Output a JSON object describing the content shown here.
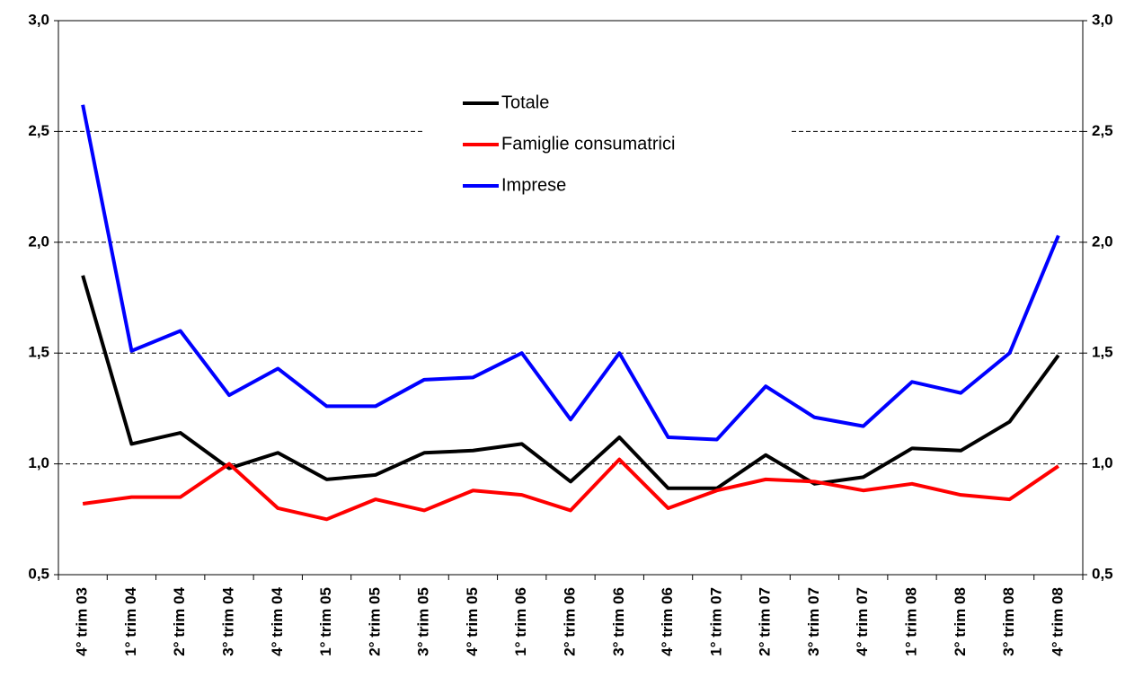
{
  "chart_data": {
    "type": "line",
    "categories": [
      "4° trim 03",
      "1° trim 04",
      "2° trim 04",
      "3° trim 04",
      "4° trim 04",
      "1° trim 05",
      "2° trim 05",
      "3° trim 05",
      "4° trim 05",
      "1° trim 06",
      "2° trim 06",
      "3° trim 06",
      "4° trim 06",
      "1° trim 07",
      "2° trim 07",
      "3° trim 07",
      "4° trim 07",
      "1° trim 08",
      "2° trim 08",
      "3° trim 08",
      "4° trim 08"
    ],
    "series": [
      {
        "name": "Totale",
        "color": "#000000",
        "values": [
          1.85,
          1.09,
          1.14,
          0.98,
          1.05,
          0.93,
          0.95,
          1.05,
          1.06,
          1.09,
          0.92,
          1.12,
          0.89,
          0.89,
          1.04,
          0.91,
          0.94,
          1.07,
          1.06,
          1.19,
          1.49
        ]
      },
      {
        "name": "Famiglie consumatrici",
        "color": "#ff0000",
        "values": [
          0.82,
          0.85,
          0.85,
          1.0,
          0.8,
          0.75,
          0.84,
          0.79,
          0.88,
          0.86,
          0.79,
          1.02,
          0.8,
          0.88,
          0.93,
          0.92,
          0.88,
          0.91,
          0.86,
          0.84,
          0.99
        ]
      },
      {
        "name": "Imprese",
        "color": "#0000ff",
        "values": [
          2.62,
          1.51,
          1.6,
          1.31,
          1.43,
          1.26,
          1.26,
          1.38,
          1.39,
          1.5,
          1.2,
          1.5,
          1.12,
          1.11,
          1.35,
          1.21,
          1.17,
          1.37,
          1.32,
          1.5,
          2.03
        ]
      }
    ],
    "ylim": [
      0.5,
      3.0
    ],
    "yticks": [
      {
        "value": 0.5,
        "label": "0,5"
      },
      {
        "value": 1.0,
        "label": "1,0"
      },
      {
        "value": 1.5,
        "label": "1,5"
      },
      {
        "value": 2.0,
        "label": "2,0"
      },
      {
        "value": 2.5,
        "label": "2,5"
      },
      {
        "value": 3.0,
        "label": "3,0"
      }
    ],
    "y2lim": [
      0.5,
      3.0
    ],
    "y2ticks": [
      {
        "value": 0.5,
        "label": "0,5"
      },
      {
        "value": 1.0,
        "label": "1,0"
      },
      {
        "value": 1.5,
        "label": "1,5"
      },
      {
        "value": 2.0,
        "label": "2,0"
      },
      {
        "value": 2.5,
        "label": "2,5"
      },
      {
        "value": 3.0,
        "label": "3,0"
      }
    ],
    "grid": true
  }
}
